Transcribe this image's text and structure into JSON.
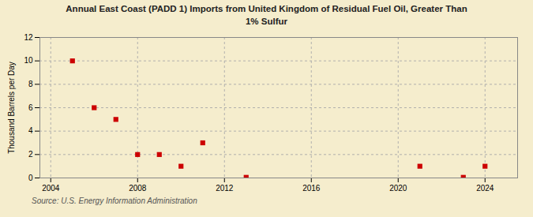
{
  "chart_data": {
    "type": "scatter",
    "title": "Annual East Coast (PADD 1) Imports from United Kingdom of Residual Fuel Oil, Greater Than\n1% Sulfur",
    "ylabel": "Thousand Barrels per Day",
    "source": "Source: U.S. Energy Information Administration",
    "x": [
      2005,
      2006,
      2007,
      2008,
      2009,
      2010,
      2011,
      2013,
      2021,
      2023,
      2024
    ],
    "values": [
      10,
      6,
      5,
      2,
      2,
      1,
      3,
      0.05,
      1,
      0.05,
      1
    ],
    "color": "#cc0000",
    "marker": "square",
    "xlim": [
      2003.5,
      2025.5
    ],
    "xticks": [
      2004,
      2008,
      2012,
      2016,
      2020,
      2024
    ],
    "ylim": [
      0,
      12
    ],
    "yticks": [
      0,
      2,
      4,
      6,
      8,
      10,
      12
    ],
    "grid": true
  }
}
